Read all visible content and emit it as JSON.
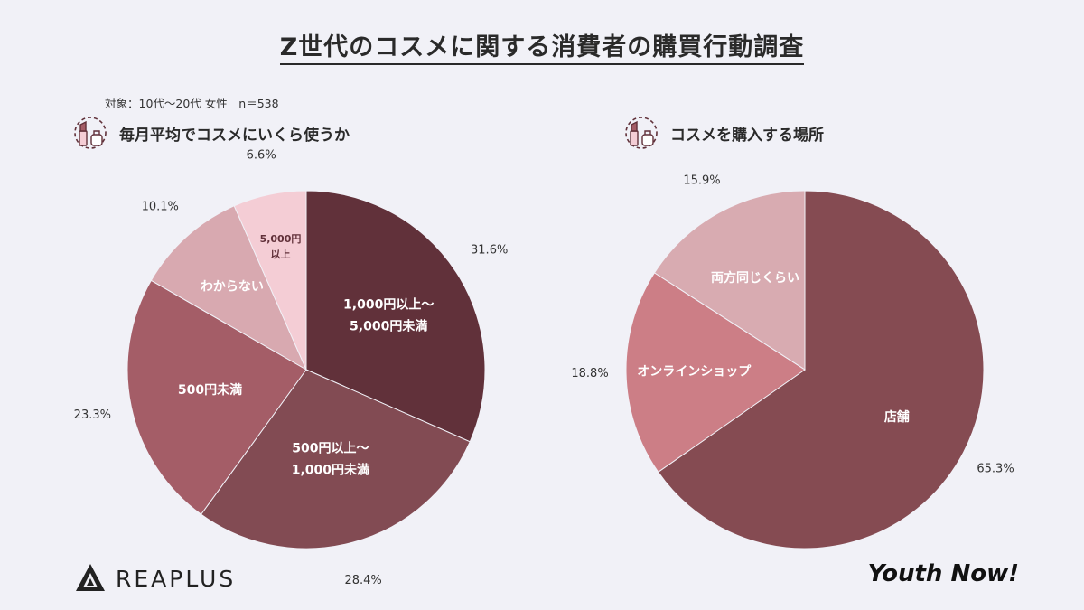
{
  "title": "Z世代のコスメに関する消費者の購買行動調査",
  "subtitle": "対象：10代〜20代 女性　n＝538",
  "sections": [
    {
      "heading": "毎月平均でコスメにいくら使うか",
      "icon": "lipstick-cosmetics-icon"
    },
    {
      "heading": "コスメを購入する場所",
      "icon": "lipstick-cosmetics-icon"
    }
  ],
  "chart_data": [
    {
      "type": "pie",
      "title": "毎月平均でコスメにいくら使うか",
      "unit": "%",
      "slices": [
        {
          "label": "1,000円以上〜\n5,000円未満",
          "value": 31.6,
          "value_label": "31.6%",
          "color": "#61313a",
          "text_color": "#ffffff"
        },
        {
          "label": "500円以上〜\n1,000円未満",
          "value": 28.4,
          "value_label": "28.4%",
          "color": "#824b53",
          "text_color": "#ffffff"
        },
        {
          "label": "500円未満",
          "value": 23.3,
          "value_label": "23.3%",
          "color": "#a45d67",
          "text_color": "#ffffff"
        },
        {
          "label": "わからない",
          "value": 10.1,
          "value_label": "10.1%",
          "color": "#d8a9b0",
          "text_color": "#ffffff"
        },
        {
          "label": "5,000円\n以上",
          "value": 6.6,
          "value_label": "6.6%",
          "color": "#f4cdd5",
          "text_color": "#61313a"
        }
      ]
    },
    {
      "type": "pie",
      "title": "コスメを購入する場所",
      "unit": "%",
      "slices": [
        {
          "label": "店舗",
          "value": 65.3,
          "value_label": "65.3%",
          "color": "#854b52",
          "text_color": "#ffffff"
        },
        {
          "label": "オンラインショップ",
          "value": 18.8,
          "value_label": "18.8%",
          "color": "#cc7e86",
          "text_color": "#ffffff"
        },
        {
          "label": "両方同じくらい",
          "value": 15.9,
          "value_label": "15.9%",
          "color": "#d8abb1",
          "text_color": "#ffffff"
        }
      ]
    }
  ],
  "footer": {
    "brand_left": "REAPLUS",
    "brand_left_icon": "reaplus-logo-icon",
    "brand_right": "Youth Now!"
  }
}
